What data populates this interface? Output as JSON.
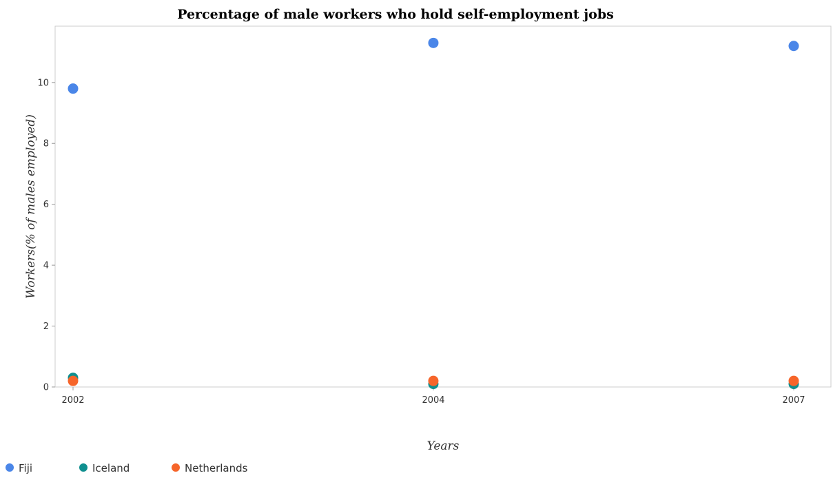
{
  "chart_data": {
    "type": "scatter",
    "title": "Percentage of male workers who hold self-employment jobs",
    "xlabel": "Years",
    "ylabel": "Workers(% of males employed)",
    "categories": [
      "2002",
      "2004",
      "2007"
    ],
    "y_ticks": [
      "0",
      "2",
      "4",
      "6",
      "8",
      "10"
    ],
    "ylim": [
      0,
      11.85
    ],
    "grid": false,
    "legend_position": "bottom-left",
    "series": [
      {
        "name": "Fiji",
        "color": "#4a86e8",
        "values": [
          9.8,
          11.3,
          11.2
        ]
      },
      {
        "name": "Iceland",
        "color": "#0f8f8f",
        "values": [
          0.3,
          0.1,
          0.1
        ]
      },
      {
        "name": "Netherlands",
        "color": "#f6652a",
        "values": [
          0.2,
          0.2,
          0.2
        ]
      }
    ]
  }
}
